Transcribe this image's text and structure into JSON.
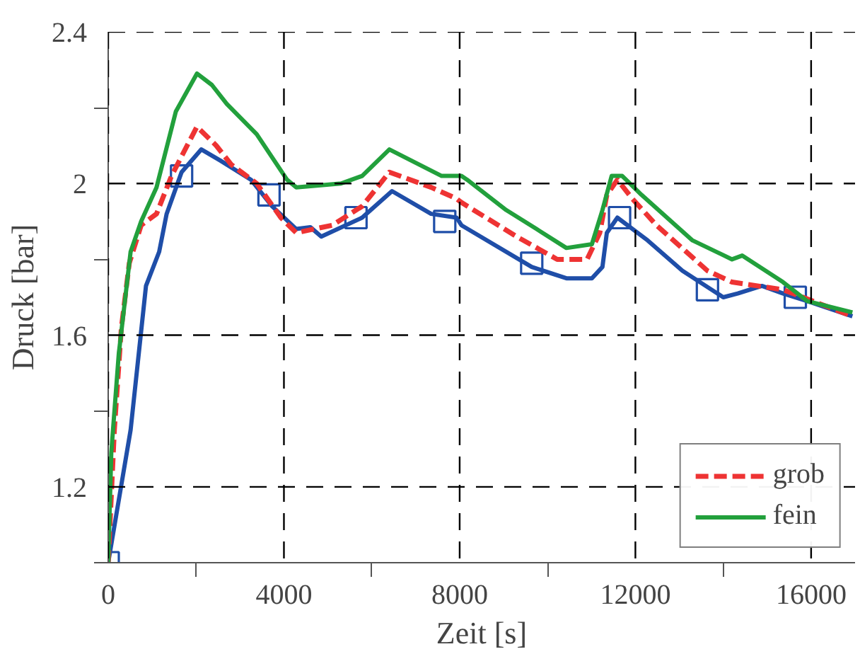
{
  "chart_data": {
    "type": "line",
    "xlabel": "Zeit [s]",
    "ylabel": "Druck [bar]",
    "xlim": [
      0,
      17000
    ],
    "ylim": [
      1.0,
      2.4
    ],
    "xticks": [
      0,
      {
        "value": 2000,
        "label": null
      },
      4000,
      {
        "value": 6000,
        "label": null
      },
      8000,
      {
        "value": 10000,
        "label": null
      },
      12000,
      {
        "value": 14000,
        "label": null
      },
      16000
    ],
    "yticks": [
      {
        "value": 1.0,
        "label": null
      },
      1.2,
      {
        "value": 1.4,
        "label": null
      },
      1.6,
      {
        "value": 1.8,
        "label": null
      },
      2,
      {
        "value": 2.2,
        "label": null
      },
      2.4
    ],
    "grid": true,
    "legend": "bottom right",
    "line_style": "solid",
    "marker": "none",
    "series": [
      {
        "color": "#1f4ea8",
        "x": [
          0,
          510,
          860,
          1160,
          1330,
          1670,
          2120,
          2560,
          3250,
          3730,
          4280,
          4600,
          4850,
          5780,
          6460,
          7350,
          7930,
          8040,
          9640,
          10430,
          11010,
          11250,
          11350,
          11590,
          12280,
          13070,
          14000,
          14330,
          14880,
          15360,
          15910,
          16940
        ],
        "values": [
          1.0,
          1.35,
          1.73,
          1.82,
          1.92,
          2.03,
          2.09,
          2.06,
          2.01,
          1.94,
          1.88,
          1.885,
          1.86,
          1.91,
          1.98,
          1.92,
          1.91,
          1.89,
          1.78,
          1.75,
          1.75,
          1.78,
          1.87,
          1.91,
          1.85,
          1.77,
          1.7,
          1.71,
          1.73,
          1.71,
          1.69,
          1.65
        ]
      },
      {
        "type": "scatter",
        "marker": "square",
        "color": "#1f4ea8",
        "x": [
          0,
          1670,
          3660,
          5640,
          7660,
          9640,
          11640,
          13640,
          15640
        ],
        "values": [
          1.0,
          2.02,
          1.97,
          1.91,
          1.9,
          1.79,
          1.91,
          1.72,
          1.7
        ]
      },
      {
        "name": "grob",
        "color": "#ee3333",
        "line_style": "dashed",
        "x": [
          0,
          140,
          300,
          480,
          750,
          1100,
          1440,
          2020,
          2460,
          2800,
          3380,
          3930,
          4280,
          5100,
          5780,
          6400,
          7350,
          7930,
          8040,
          9300,
          10220,
          10900,
          11190,
          11350,
          11590,
          11930,
          12480,
          13640,
          14200,
          15360,
          16940
        ],
        "values": [
          1.0,
          1.35,
          1.62,
          1.79,
          1.89,
          1.92,
          2.02,
          2.15,
          2.1,
          2.05,
          2.0,
          1.91,
          1.87,
          1.89,
          1.94,
          2.03,
          1.99,
          1.96,
          1.95,
          1.86,
          1.8,
          1.8,
          1.87,
          1.97,
          2.01,
          1.96,
          1.89,
          1.77,
          1.74,
          1.72,
          1.65
        ]
      },
      {
        "name": "fein",
        "color": "#22a03c",
        "x": [
          0,
          70,
          240,
          510,
          750,
          1100,
          1540,
          2020,
          2360,
          2700,
          3380,
          4070,
          4280,
          5300,
          5780,
          6400,
          7590,
          8040,
          8170,
          9060,
          9750,
          10430,
          11010,
          11250,
          11460,
          11700,
          12140,
          13300,
          14200,
          14430,
          15360,
          15910,
          16940
        ],
        "values": [
          1.0,
          1.29,
          1.55,
          1.82,
          1.9,
          1.99,
          2.19,
          2.29,
          2.26,
          2.21,
          2.13,
          2.01,
          1.99,
          2.0,
          2.02,
          2.09,
          2.02,
          2.02,
          2.01,
          1.93,
          1.88,
          1.83,
          1.84,
          1.93,
          2.02,
          2.02,
          1.97,
          1.85,
          1.8,
          1.81,
          1.74,
          1.69,
          1.66
        ]
      }
    ]
  }
}
